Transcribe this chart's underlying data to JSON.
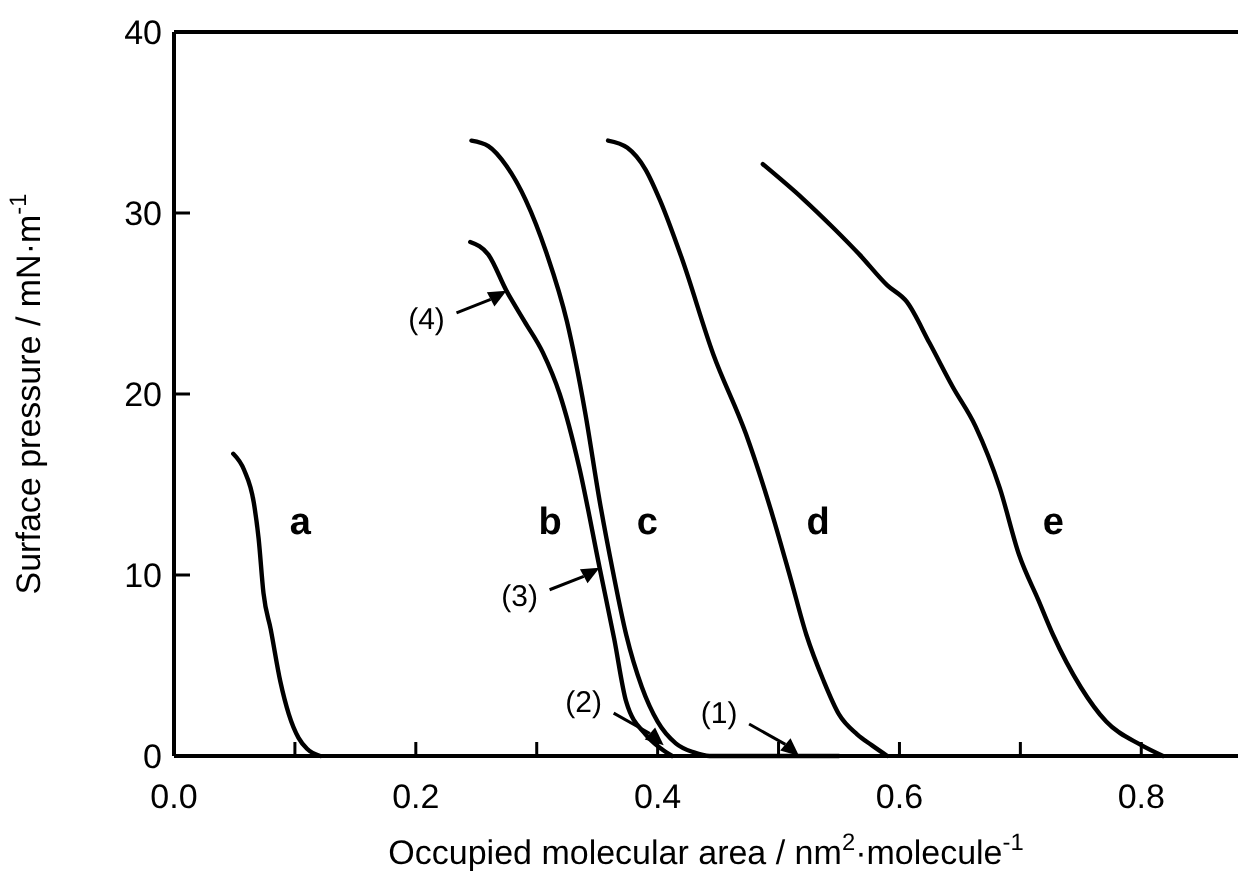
{
  "chart_data": {
    "type": "line",
    "xlabel": "Occupied molecular area / nm$^{2}$·molecule$^{-1}$",
    "ylabel": "Surface pressure / mN·m$^{-1}$",
    "xlim": [
      0,
      0.88
    ],
    "xticks": [
      {
        "value": 0,
        "label": "0.0"
      },
      {
        "value": 0.1,
        "label": null
      },
      {
        "value": 0.2,
        "label": "0.2"
      },
      {
        "value": 0.3,
        "label": null
      },
      {
        "value": 0.4,
        "label": "0.4"
      },
      {
        "value": 0.5,
        "label": null
      },
      {
        "value": 0.6,
        "label": "0.6"
      },
      {
        "value": 0.7,
        "label": null
      },
      {
        "value": 0.8,
        "label": "0.8"
      }
    ],
    "ylim": [
      0,
      40
    ],
    "yticks": [
      0,
      10,
      20,
      30,
      40
    ],
    "grid": false,
    "marker": "none",
    "line_style": "solid",
    "series": [
      {
        "name": "a",
        "color": "#000000",
        "x": [
          0.049,
          0.058,
          0.066,
          0.07,
          0.074,
          0.08,
          0.088,
          0.095,
          0.103,
          0.11,
          0.121
        ],
        "values": [
          16.7,
          15.8,
          14,
          12,
          9,
          7,
          4.1,
          2.3,
          1.0,
          0.4,
          0
        ]
      },
      {
        "name": "b",
        "color": "#000000",
        "x": [
          0.245,
          0.26,
          0.275,
          0.29,
          0.305,
          0.319,
          0.335,
          0.352,
          0.364,
          0.374,
          0.39,
          0.403,
          0.412
        ],
        "values": [
          28.4,
          27.7,
          25.7,
          24,
          22.3,
          20,
          16,
          10.4,
          6.5,
          3.0,
          1.2,
          0.4,
          0
        ]
      },
      {
        "name": "c",
        "color": "#000000",
        "x": [
          0.246,
          0.26,
          0.275,
          0.291,
          0.308,
          0.325,
          0.34,
          0.352,
          0.363,
          0.374,
          0.387,
          0.4,
          0.415,
          0.43,
          0.443,
          0.55
        ],
        "values": [
          34,
          33.7,
          32.6,
          30.7,
          27.8,
          24,
          19,
          14.1,
          10.2,
          6.7,
          3.8,
          1.9,
          0.7,
          0.2,
          0,
          0
        ]
      },
      {
        "name": "d",
        "color": "#000000",
        "x": [
          0.359,
          0.375,
          0.39,
          0.402,
          0.42,
          0.446,
          0.473,
          0.495,
          0.51,
          0.523,
          0.537,
          0.55,
          0.565,
          0.577,
          0.59
        ],
        "values": [
          34,
          33.6,
          32.4,
          30.7,
          27.5,
          22.2,
          17.8,
          13.3,
          9.8,
          6.7,
          4.2,
          2.3,
          1.2,
          0.6,
          0
        ]
      },
      {
        "name": "e",
        "color": "#000000",
        "x": [
          0.487,
          0.52,
          0.545,
          0.567,
          0.59,
          0.606,
          0.625,
          0.644,
          0.663,
          0.683,
          0.699,
          0.715,
          0.727,
          0.75,
          0.771,
          0.8,
          0.818
        ],
        "values": [
          32.7,
          30.8,
          29.2,
          27.7,
          26,
          25.1,
          22.8,
          20.4,
          18.2,
          14.8,
          11.1,
          8.6,
          6.7,
          3.8,
          1.9,
          0.6,
          0
        ]
      }
    ],
    "annotations": [
      {
        "text": "(1)",
        "x": 0.517,
        "y": 0
      },
      {
        "text": "(2)",
        "x": 0.405,
        "y": 0.6
      },
      {
        "text": "(3)",
        "x": 0.352,
        "y": 10.4
      },
      {
        "text": "(4)",
        "x": 0.275,
        "y": 25.7
      }
    ]
  }
}
